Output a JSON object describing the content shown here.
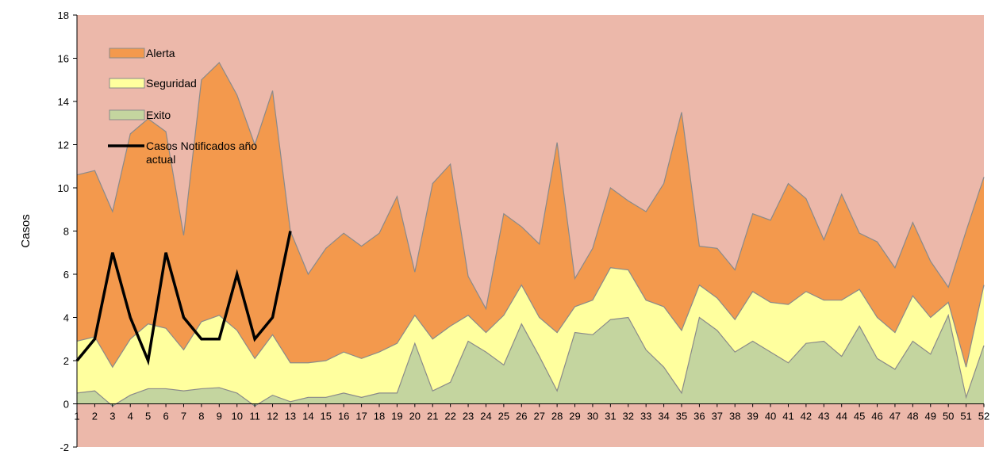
{
  "chart_data": {
    "type": "area",
    "ylabel": "Casos",
    "xlabel": "",
    "title": "",
    "ylim": [
      -2,
      18
    ],
    "yticks": [
      -2,
      0,
      2,
      4,
      6,
      8,
      10,
      12,
      14,
      16,
      18
    ],
    "x": [
      1,
      2,
      3,
      4,
      5,
      6,
      7,
      8,
      9,
      10,
      11,
      12,
      13,
      14,
      15,
      16,
      17,
      18,
      19,
      20,
      21,
      22,
      23,
      24,
      25,
      26,
      27,
      28,
      29,
      30,
      31,
      32,
      33,
      34,
      35,
      36,
      37,
      38,
      39,
      40,
      41,
      42,
      43,
      44,
      45,
      46,
      47,
      48,
      49,
      50,
      51,
      52
    ],
    "legend_position": "top-left",
    "grid": false,
    "series": [
      {
        "name": "Exito",
        "kind": "area",
        "values": [
          0.5,
          0.6,
          -0.1,
          0.4,
          0.7,
          0.7,
          0.6,
          0.7,
          0.75,
          0.5,
          -0.1,
          0.4,
          0.1,
          0.3,
          0.3,
          0.5,
          0.3,
          0.5,
          0.5,
          2.8,
          0.6,
          1.0,
          2.9,
          2.4,
          1.8,
          3.7,
          2.2,
          0.6,
          3.3,
          3.2,
          3.9,
          4.0,
          2.5,
          1.7,
          0.5,
          4.0,
          3.4,
          2.4,
          2.9,
          2.4,
          1.9,
          2.8,
          2.9,
          2.2,
          3.6,
          2.1,
          1.6,
          2.9,
          2.3,
          4.1,
          0.3,
          2.7
        ]
      },
      {
        "name": "Seguridad",
        "kind": "area",
        "values": [
          2.9,
          3.1,
          1.7,
          3.0,
          3.7,
          3.5,
          2.5,
          3.8,
          4.1,
          3.4,
          2.1,
          3.2,
          1.9,
          1.9,
          2.0,
          2.4,
          2.1,
          2.4,
          2.8,
          4.1,
          3.0,
          3.6,
          4.1,
          3.3,
          4.1,
          5.5,
          4.0,
          3.3,
          4.5,
          4.8,
          6.3,
          6.2,
          4.8,
          4.5,
          3.4,
          5.5,
          4.9,
          3.9,
          5.2,
          4.7,
          4.6,
          5.2,
          4.8,
          4.8,
          5.3,
          4.0,
          3.3,
          5.0,
          4.0,
          4.7,
          1.7,
          5.5
        ]
      },
      {
        "name": "Alerta",
        "kind": "area",
        "values": [
          10.6,
          10.8,
          8.9,
          12.5,
          13.2,
          12.6,
          7.8,
          15.0,
          15.8,
          14.3,
          12.0,
          14.5,
          8.0,
          6.0,
          7.2,
          7.9,
          7.3,
          7.9,
          9.6,
          6.1,
          10.2,
          11.1,
          5.9,
          4.4,
          8.8,
          8.2,
          7.4,
          12.1,
          5.8,
          7.2,
          10.0,
          9.4,
          8.9,
          10.2,
          13.5,
          7.3,
          7.2,
          6.2,
          8.8,
          8.5,
          10.2,
          9.5,
          7.6,
          9.7,
          7.9,
          7.5,
          6.3,
          8.4,
          6.6,
          5.4,
          8.0,
          10.5
        ]
      },
      {
        "name": "Casos Notificados año actual",
        "kind": "line",
        "values": [
          2,
          3,
          7,
          4,
          2,
          7,
          4,
          3,
          3,
          6,
          3,
          4,
          8,
          null,
          null,
          null,
          null,
          null,
          null,
          null,
          null,
          null,
          null,
          null,
          null,
          null,
          null,
          null,
          null,
          null,
          null,
          null,
          null,
          null,
          null,
          null,
          null,
          null,
          null,
          null,
          null,
          null,
          null,
          null,
          null,
          null,
          null,
          null,
          null,
          null,
          null,
          null
        ]
      }
    ],
    "colors": {
      "background": "#ecb8aa",
      "alerta": "#f3994d",
      "seguridad": "#ffff9e",
      "exito": "#c4d59f",
      "line": "#000000",
      "outline": "#8a8a8a"
    }
  }
}
